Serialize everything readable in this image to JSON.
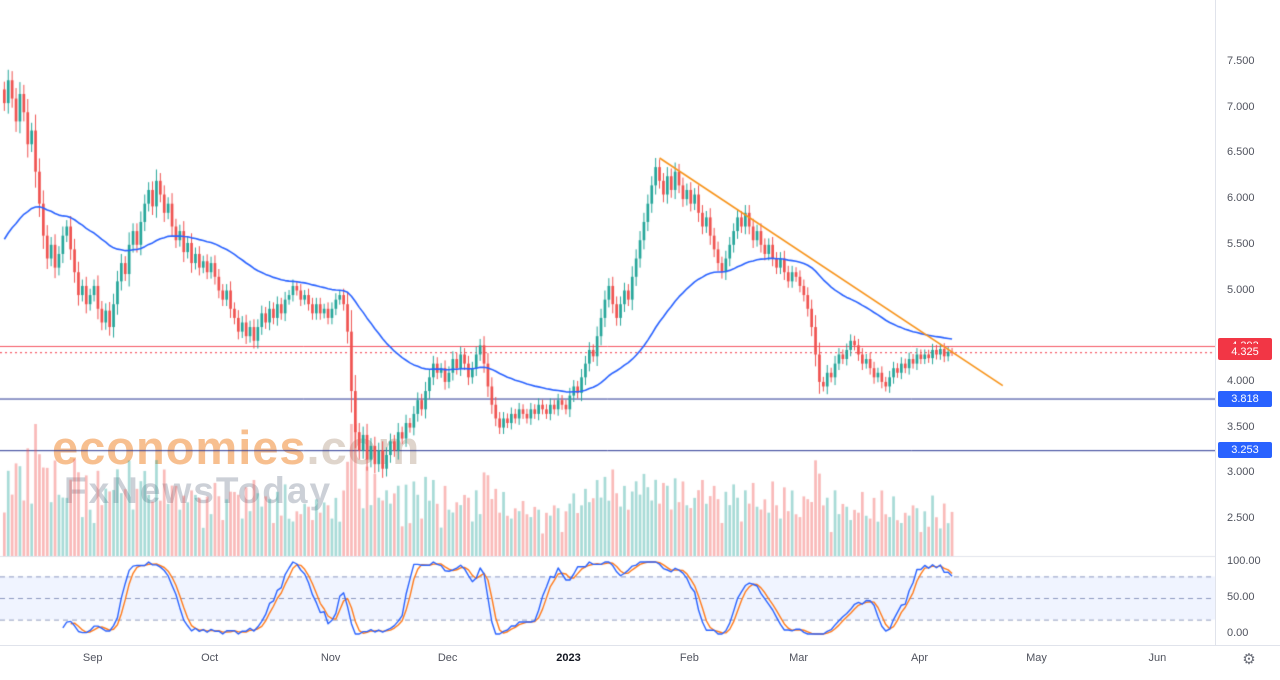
{
  "watermark": {
    "line1": "economies",
    "domain": ".com",
    "line2": "FxNewsToday"
  },
  "gear": {
    "icon": "⚙"
  },
  "chart_data": {
    "type": "candlestick",
    "title": "",
    "xlabel": "",
    "ylabel": "",
    "y_axis": {
      "ticks": [
        "7.500",
        "7.000",
        "6.500",
        "6.000",
        "5.500",
        "5.000",
        "4.000",
        "3.500",
        "3.000",
        "2.500"
      ],
      "range_visible": [
        2.1,
        8.1
      ]
    },
    "x_axis": {
      "labels": [
        {
          "label": "Sep",
          "i": 23,
          "strong": false
        },
        {
          "label": "Oct",
          "i": 53,
          "strong": false
        },
        {
          "label": "Nov",
          "i": 84,
          "strong": false
        },
        {
          "label": "Dec",
          "i": 114,
          "strong": false
        },
        {
          "label": "2023",
          "i": 145,
          "strong": true
        },
        {
          "label": "Feb",
          "i": 176,
          "strong": false
        },
        {
          "label": "Mar",
          "i": 204,
          "strong": false
        },
        {
          "label": "Apr",
          "i": 235,
          "strong": false
        },
        {
          "label": "May",
          "i": 265,
          "strong": false
        },
        {
          "label": "Jun",
          "i": 296,
          "strong": false
        }
      ]
    },
    "first_open": 7.2,
    "candles_close": [
      7.05,
      7.3,
      7.1,
      6.85,
      7.15,
      6.95,
      6.6,
      6.75,
      6.3,
      5.95,
      5.6,
      5.35,
      5.5,
      5.25,
      5.4,
      5.6,
      5.7,
      5.45,
      5.2,
      4.95,
      5.05,
      4.85,
      4.95,
      5.05,
      4.8,
      4.65,
      4.78,
      4.6,
      4.85,
      5.1,
      5.3,
      5.18,
      5.5,
      5.65,
      5.5,
      5.75,
      5.95,
      6.1,
      5.92,
      6.2,
      6.05,
      5.85,
      5.95,
      5.7,
      5.55,
      5.65,
      5.42,
      5.52,
      5.3,
      5.4,
      5.25,
      5.32,
      5.2,
      5.3,
      5.15,
      5.0,
      4.9,
      5.0,
      4.8,
      4.7,
      4.55,
      4.65,
      4.5,
      4.6,
      4.45,
      4.6,
      4.75,
      4.65,
      4.8,
      4.7,
      4.85,
      4.75,
      4.9,
      4.95,
      5.05,
      5.0,
      4.9,
      4.95,
      4.85,
      4.75,
      4.85,
      4.75,
      4.8,
      4.7,
      4.8,
      4.9,
      4.95,
      4.85,
      4.55,
      3.9,
      3.45,
      3.25,
      3.42,
      3.15,
      3.3,
      3.1,
      3.25,
      3.05,
      3.2,
      3.35,
      3.25,
      3.45,
      3.38,
      3.55,
      3.5,
      3.65,
      3.8,
      3.7,
      3.9,
      4.05,
      4.2,
      4.1,
      4.15,
      4.0,
      4.1,
      4.25,
      4.15,
      4.3,
      4.2,
      4.05,
      4.15,
      4.3,
      4.4,
      4.2,
      3.95,
      3.75,
      3.6,
      3.5,
      3.6,
      3.55,
      3.65,
      3.6,
      3.7,
      3.65,
      3.6,
      3.7,
      3.65,
      3.75,
      3.7,
      3.65,
      3.75,
      3.7,
      3.8,
      3.75,
      3.7,
      3.85,
      3.95,
      3.88,
      4.05,
      4.2,
      4.35,
      4.28,
      4.5,
      4.7,
      4.9,
      5.05,
      4.85,
      4.7,
      4.85,
      5.0,
      4.9,
      5.15,
      5.35,
      5.55,
      5.75,
      5.95,
      6.15,
      6.35,
      6.2,
      6.05,
      6.25,
      6.1,
      6.3,
      6.15,
      6.0,
      6.1,
      5.95,
      6.05,
      5.85,
      5.7,
      5.8,
      5.6,
      5.45,
      5.3,
      5.2,
      5.35,
      5.5,
      5.65,
      5.8,
      5.7,
      5.85,
      5.7,
      5.55,
      5.65,
      5.5,
      5.4,
      5.5,
      5.35,
      5.25,
      5.35,
      5.2,
      5.1,
      5.2,
      5.15,
      5.05,
      4.95,
      4.8,
      4.6,
      4.3,
      4.0,
      3.95,
      4.1,
      4.05,
      4.2,
      4.3,
      4.25,
      4.35,
      4.45,
      4.4,
      4.3,
      4.2,
      4.25,
      4.15,
      4.05,
      4.1,
      4.0,
      3.95,
      4.05,
      4.15,
      4.1,
      4.2,
      4.15,
      4.25,
      4.2,
      4.3,
      4.25,
      4.3,
      4.26,
      4.35,
      4.3,
      4.36,
      4.28,
      4.33,
      4.325
    ],
    "colors": {
      "up": "#26a69a",
      "down": "#ef5350",
      "vol_up": "rgba(38,166,154,0.40)",
      "vol_down": "rgba(239,83,80,0.40)"
    },
    "levels": [
      {
        "value": 4.393,
        "label": "4.393",
        "line": "solid",
        "line_color": "rgba(242,54,69,0.85)",
        "tag_bg": "#f23645"
      },
      {
        "value": 4.325,
        "label": "4.325",
        "line": "dotted",
        "line_color": "#f23645",
        "tag_bg": "#f23645"
      },
      {
        "value": 3.818,
        "label": "3.818",
        "line": "solid",
        "line_color": "#283593",
        "tag_bg": "#2962ff"
      },
      {
        "value": 3.253,
        "label": "3.253",
        "line": "solid",
        "line_color": "#283593",
        "tag_bg": "#2962ff"
      }
    ],
    "trendline": {
      "i1": 168,
      "p1": 6.45,
      "i2": 256,
      "p2": 3.96,
      "color": "#f7931a"
    },
    "indicators": {
      "ema": {
        "type": "ema",
        "period": 50,
        "seed": 5.5,
        "color": "#2962ff"
      },
      "stochastic": {
        "k_period": 14,
        "k_smooth": 3,
        "d_period": 3,
        "k_color": "#2962ff",
        "d_color": "#ff7a1a",
        "band_levels": [
          80,
          50,
          20
        ],
        "band_fill": "rgba(41,98,255,0.07)",
        "band_line": "rgba(106,122,170,0.75)",
        "scale_labels": [
          {
            "text": "100.00",
            "v": 100
          },
          {
            "text": "50.00",
            "v": 50
          },
          {
            "text": "0.00",
            "v": 0
          }
        ]
      }
    }
  }
}
